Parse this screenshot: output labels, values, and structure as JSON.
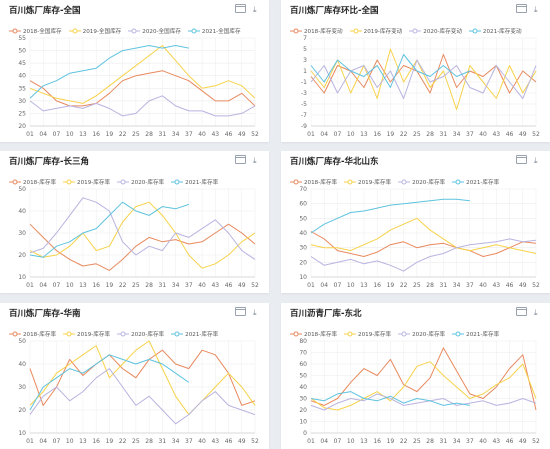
{
  "colors": {
    "s2018": "#e8895e",
    "s2019": "#f7d24a",
    "s2020": "#b8b4e0",
    "s2021": "#5ec3df",
    "grid": "#ececec",
    "axis": "#cfcfcf",
    "card": "#ffffff",
    "bg": "#e9ecf1"
  },
  "icons": {
    "maximize": "window-icon",
    "more": "download-icon"
  },
  "panels": [
    {
      "title": "百川炼厂库存-全国",
      "legend": [
        "2018-全国库存",
        "2019-全国库存",
        "2020-全国库存",
        "2021-全国库存"
      ],
      "chart_data": {
        "type": "line",
        "categories": [
          "01",
          "04",
          "07",
          "10",
          "13",
          "16",
          "19",
          "22",
          "25",
          "28",
          "31",
          "34",
          "37",
          "40",
          "43",
          "46",
          "49",
          "52"
        ],
        "y_ticks": [
          "20",
          "25",
          "30",
          "35",
          "40",
          "45",
          "50",
          "55"
        ],
        "ylim": [
          20,
          55
        ],
        "series": [
          {
            "name": "2018-全国库存",
            "values": [
              38,
              35,
              30,
              28,
              28,
              29,
              33,
              38,
              40,
              41,
              42,
              40,
              38,
              34,
              30,
              30,
              33,
              28
            ]
          },
          {
            "name": "2019-全国库存",
            "values": [
              35,
              33,
              31,
              30,
              29,
              32,
              36,
              40,
              44,
              48,
              52,
              46,
              40,
              35,
              36,
              38,
              36,
              31
            ]
          },
          {
            "name": "2020-全国库存",
            "values": [
              30,
              26,
              27,
              28,
              27,
              29,
              27,
              24,
              25,
              30,
              32,
              28,
              26,
              26,
              24,
              24,
              25,
              28
            ]
          },
          {
            "name": "2021-全国库存",
            "values": [
              31,
              36,
              38,
              41,
              42,
              43,
              47,
              50,
              51,
              52,
              51,
              52,
              51,
              null,
              null,
              null,
              null,
              null
            ]
          }
        ]
      }
    },
    {
      "title": "百川炼厂库存环比-全国",
      "legend": [
        "2018-库存变动",
        "2019-库存变动",
        "2020-库存变动",
        "2021-库存变动"
      ],
      "chart_data": {
        "type": "line",
        "categories": [
          "01",
          "04",
          "07",
          "10",
          "13",
          "16",
          "19",
          "22",
          "25",
          "28",
          "31",
          "34",
          "37",
          "40",
          "43",
          "46",
          "49",
          "52"
        ],
        "y_ticks": [
          "-9",
          "-7",
          "-5",
          "-3",
          "-1",
          "1",
          "3",
          "5",
          "7"
        ],
        "ylim": [
          -9,
          7
        ],
        "series": [
          {
            "name": "2018-库存变动",
            "values": [
              0,
              -3,
              2,
              1,
              -2,
              3,
              -1,
              2,
              1,
              -3,
              4,
              -2,
              1,
              0,
              2,
              -3,
              1,
              -1
            ]
          },
          {
            "name": "2019-库存变动",
            "values": [
              1,
              -2,
              3,
              -3,
              2,
              -4,
              5,
              -1,
              3,
              -2,
              1,
              -6,
              2,
              -1,
              -4,
              2,
              -3,
              1
            ]
          },
          {
            "name": "2020-库存变动",
            "values": [
              -1,
              2,
              -3,
              1,
              2,
              -2,
              1,
              -4,
              3,
              -1,
              0,
              2,
              -2,
              -3,
              2,
              -1,
              -4,
              2
            ]
          },
          {
            "name": "2021-库存变动",
            "values": [
              2,
              -1,
              3,
              1,
              0,
              2,
              -2,
              4,
              1,
              0,
              2,
              0,
              1,
              null,
              null,
              null,
              null,
              null
            ]
          }
        ]
      }
    },
    {
      "title": "百川炼厂库存-长三角",
      "legend": [
        "2018-库存率",
        "2019-库存率",
        "2020-库存率",
        "2021-库存率"
      ],
      "chart_data": {
        "type": "line",
        "categories": [
          "01",
          "04",
          "07",
          "10",
          "13",
          "16",
          "19",
          "22",
          "25",
          "28",
          "31",
          "34",
          "37",
          "40",
          "43",
          "46",
          "49",
          "52"
        ],
        "y_ticks": [
          "10",
          "20",
          "30",
          "40",
          "50"
        ],
        "ylim": [
          10,
          50
        ],
        "series": [
          {
            "name": "2018-库存率",
            "values": [
              34,
              28,
              22,
              18,
              15,
              16,
              13,
              18,
              24,
              28,
              26,
              27,
              25,
              26,
              30,
              34,
              30,
              25
            ]
          },
          {
            "name": "2019-库存率",
            "values": [
              22,
              19,
              20,
              24,
              30,
              22,
              24,
              35,
              42,
              44,
              38,
              30,
              20,
              14,
              16,
              20,
              26,
              30
            ]
          },
          {
            "name": "2020-库存率",
            "values": [
              21,
              23,
              30,
              38,
              46,
              44,
              40,
              26,
              20,
              24,
              22,
              30,
              28,
              32,
              36,
              30,
              22,
              18
            ]
          },
          {
            "name": "2021-库存率",
            "values": [
              20,
              19,
              24,
              26,
              30,
              32,
              38,
              44,
              40,
              38,
              42,
              41,
              43,
              null,
              null,
              null,
              null,
              null
            ]
          }
        ]
      }
    },
    {
      "title": "百川炼厂库存-华北山东",
      "legend": [
        "2018-库存率",
        "2019-库存率",
        "2020-库存率",
        "2021-库存率"
      ],
      "chart_data": {
        "type": "line",
        "categories": [
          "01",
          "04",
          "07",
          "10",
          "13",
          "16",
          "19",
          "22",
          "25",
          "28",
          "31",
          "34",
          "37",
          "40",
          "43",
          "46",
          "49",
          "52"
        ],
        "y_ticks": [
          "10",
          "20",
          "30",
          "40",
          "50",
          "60",
          "70"
        ],
        "ylim": [
          10,
          70
        ],
        "series": [
          {
            "name": "2018-库存率",
            "values": [
              41,
              36,
              28,
              26,
              24,
              27,
              32,
              34,
              30,
              32,
              33,
              30,
              28,
              24,
              26,
              30,
              34,
              33
            ]
          },
          {
            "name": "2019-库存率",
            "values": [
              32,
              30,
              30,
              28,
              32,
              36,
              42,
              46,
              50,
              42,
              36,
              30,
              28,
              30,
              32,
              30,
              28,
              26
            ]
          },
          {
            "name": "2020-库存率",
            "values": [
              24,
              18,
              20,
              22,
              19,
              21,
              18,
              14,
              20,
              24,
              26,
              30,
              32,
              33,
              34,
              36,
              34,
              35
            ]
          },
          {
            "name": "2021-库存率",
            "values": [
              40,
              46,
              50,
              54,
              55,
              57,
              59,
              60,
              61,
              62,
              63,
              63,
              62,
              null,
              null,
              null,
              null,
              null
            ]
          }
        ]
      }
    },
    {
      "title": "百川炼厂库存-华南",
      "legend": [
        "2018-库存率",
        "2019-库存率",
        "2020-库存率",
        "2021-库存率"
      ],
      "chart_data": {
        "type": "line",
        "categories": [
          "01",
          "04",
          "07",
          "10",
          "13",
          "16",
          "19",
          "22",
          "25",
          "28",
          "31",
          "34",
          "37",
          "40",
          "43",
          "46",
          "49",
          "52"
        ],
        "y_ticks": [
          "10",
          "20",
          "30",
          "40",
          "50"
        ],
        "ylim": [
          10,
          50
        ],
        "series": [
          {
            "name": "2018-库存率",
            "values": [
              38,
              22,
              30,
              42,
              35,
              40,
              44,
              38,
              34,
              42,
              46,
              40,
              38,
              46,
              44,
              36,
              22,
              24
            ]
          },
          {
            "name": "2019-库存率",
            "values": [
              22,
              28,
              36,
              40,
              44,
              48,
              34,
              40,
              46,
              50,
              38,
              26,
              18,
              24,
              30,
              36,
              30,
              22
            ]
          },
          {
            "name": "2020-库存率",
            "values": [
              18,
              26,
              30,
              24,
              28,
              34,
              38,
              30,
              22,
              26,
              20,
              14,
              18,
              24,
              28,
              22,
              20,
              18
            ]
          },
          {
            "name": "2021-库存率",
            "values": [
              20,
              30,
              34,
              38,
              36,
              40,
              44,
              42,
              40,
              42,
              40,
              36,
              32,
              null,
              null,
              null,
              null,
              null
            ]
          }
        ]
      }
    },
    {
      "title": "百川沥青厂库-东北",
      "legend": [
        "2018-库存率",
        "2019-库存率",
        "2020-库存率",
        "2021-库存率"
      ],
      "chart_data": {
        "type": "line",
        "categories": [
          "01",
          "04",
          "07",
          "10",
          "13",
          "16",
          "19",
          "22",
          "25",
          "28",
          "31",
          "34",
          "37",
          "40",
          "43",
          "46",
          "49",
          "52"
        ],
        "y_ticks": [
          "0",
          "10",
          "20",
          "30",
          "40",
          "50",
          "60",
          "70",
          "80"
        ],
        "ylim": [
          0,
          80
        ],
        "series": [
          {
            "name": "2018-库存率",
            "values": [
              28,
              24,
              30,
              44,
              56,
              50,
              64,
              42,
              36,
              48,
              74,
              54,
              34,
              30,
              40,
              56,
              68,
              20
            ]
          },
          {
            "name": "2019-库存率",
            "values": [
              30,
              22,
              20,
              24,
              30,
              36,
              28,
              40,
              58,
              62,
              50,
              40,
              30,
              34,
              42,
              48,
              60,
              30
            ]
          },
          {
            "name": "2020-库存率",
            "values": [
              24,
              20,
              26,
              30,
              28,
              34,
              30,
              24,
              26,
              28,
              30,
              24,
              26,
              28,
              24,
              26,
              30,
              26
            ]
          },
          {
            "name": "2021-库存率",
            "values": [
              30,
              28,
              34,
              36,
              30,
              28,
              32,
              26,
              30,
              28,
              24,
              26,
              24,
              null,
              null,
              null,
              null,
              null
            ]
          }
        ]
      }
    }
  ]
}
